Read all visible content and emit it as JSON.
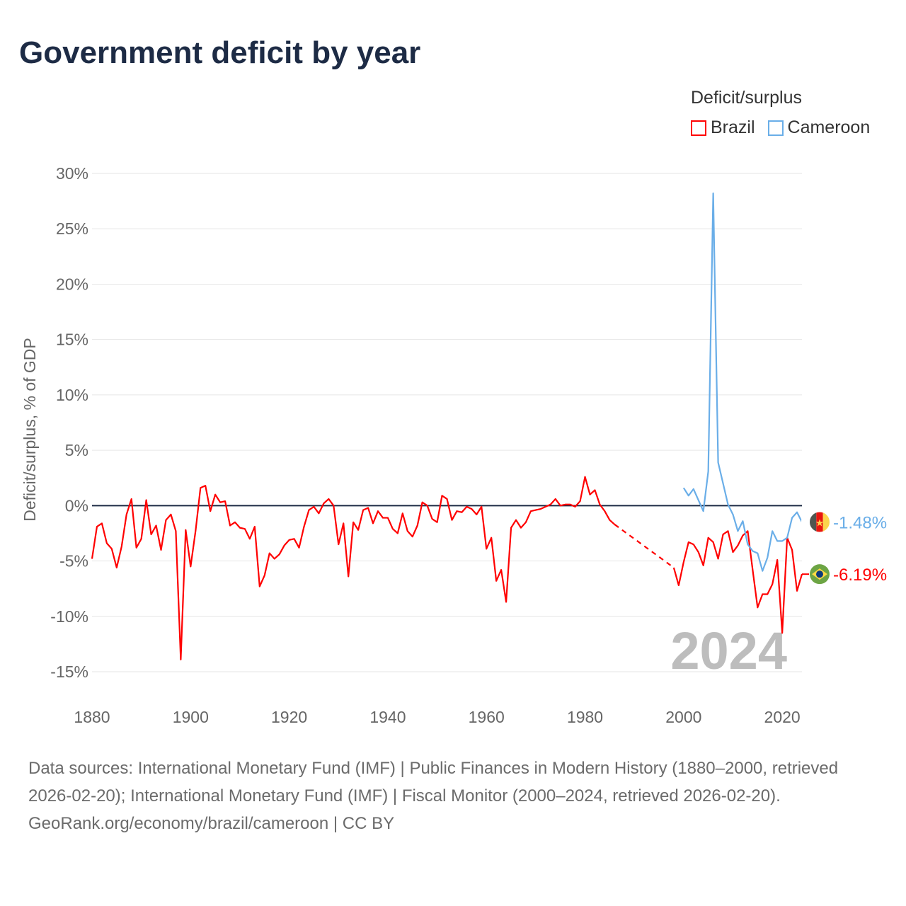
{
  "title": "Government deficit by year",
  "legend": {
    "title": "Deficit/surplus",
    "items": [
      {
        "name": "Brazil",
        "color": "#ff0000"
      },
      {
        "name": "Cameroon",
        "color": "#6aaee8"
      }
    ]
  },
  "footer": {
    "sources": "Data sources: International Monetary Fund (IMF) | Public Finances in Modern History (1880–2000, retrieved 2026-02-20); International Monetary Fund (IMF) | Fiscal Monitor (2000–2024, retrieved 2026-02-20).",
    "credit": "GeoRank.org/economy/brazil/cameroon | CC BY"
  },
  "chart_data": {
    "type": "line",
    "title": "Government deficit by year",
    "ylabel": "Deficit/surplus, % of GDP",
    "xlabel": "",
    "xlim": [
      1880,
      2024
    ],
    "ylim": [
      -15,
      30
    ],
    "x_ticks": [
      1880,
      1900,
      1920,
      1940,
      1960,
      1980,
      2000,
      2020
    ],
    "y_ticks": [
      30,
      25,
      20,
      15,
      10,
      5,
      0,
      -5,
      -10,
      -15
    ],
    "y_tick_labels": [
      "30%",
      "25%",
      "20%",
      "15%",
      "10%",
      "5%",
      "0%",
      "-5%",
      "-10%",
      "-15%"
    ],
    "year_label": "2024",
    "grid": true,
    "legend_position": "top-right",
    "series": [
      {
        "name": "Brazil",
        "color": "#ff0000",
        "end_label": "-6.19%",
        "start_year": 1880,
        "gap": [
          1986,
          1998
        ],
        "values": [
          -4.8,
          -1.9,
          -1.6,
          -3.4,
          -3.9,
          -5.6,
          -3.7,
          -0.8,
          0.6,
          -3.8,
          -3.0,
          0.5,
          -2.6,
          -1.8,
          -4.0,
          -1.3,
          -0.8,
          -2.3,
          -13.9,
          -2.2,
          -5.5,
          -2.3,
          1.6,
          1.8,
          -0.5,
          1.0,
          0.3,
          0.4,
          -1.8,
          -1.5,
          -2.0,
          -2.1,
          -3.0,
          -1.9,
          -7.3,
          -6.3,
          -4.3,
          -4.8,
          -4.4,
          -3.6,
          -3.1,
          -3.0,
          -3.8,
          -1.9,
          -0.4,
          -0.1,
          -0.7,
          0.2,
          0.6,
          0.0,
          -3.5,
          -1.6,
          -6.4,
          -1.5,
          -2.2,
          -0.4,
          -0.2,
          -1.6,
          -0.5,
          -1.1,
          -1.1,
          -2.1,
          -2.5,
          -0.7,
          -2.3,
          -2.8,
          -1.8,
          0.3,
          0.0,
          -1.2,
          -1.5,
          0.9,
          0.6,
          -1.3,
          -0.5,
          -0.6,
          -0.1,
          -0.3,
          -0.8,
          -0.1,
          -3.9,
          -2.9,
          -6.8,
          -5.8,
          -8.7,
          -2.0,
          -1.3,
          -2.0,
          -1.5,
          -0.5,
          -0.4,
          -0.3,
          -0.1,
          0.1,
          0.6,
          0.0,
          0.1,
          0.1,
          -0.1,
          0.4,
          2.6,
          1.0,
          1.4,
          0.1,
          -0.5,
          -1.3,
          -1.7,
          null,
          null,
          null,
          null,
          null,
          null,
          null,
          null,
          null,
          null,
          null,
          -5.6,
          -7.2,
          -5.1,
          -3.3,
          -3.5,
          -4.2,
          -5.4,
          -2.9,
          -3.3,
          -4.8,
          -2.6,
          -2.3,
          -4.2,
          -3.6,
          -2.7,
          -2.3,
          -5.8,
          -9.2,
          -8.0,
          -8.0,
          -7.1,
          -4.9,
          -11.5,
          -2.9,
          -4.0,
          -7.7,
          -6.19
        ]
      },
      {
        "name": "Cameroon",
        "color": "#6aaee8",
        "end_label": "-1.48%",
        "start_year": 2000,
        "values": [
          1.6,
          0.9,
          1.5,
          0.5,
          -0.5,
          3.1,
          28.2,
          3.9,
          2.0,
          0.1,
          -0.8,
          -2.3,
          -1.4,
          -3.5,
          -4.1,
          -4.3,
          -5.9,
          -4.7,
          -2.3,
          -3.2,
          -3.2,
          -2.9,
          -1.1,
          -0.6,
          -1.48
        ]
      }
    ]
  }
}
